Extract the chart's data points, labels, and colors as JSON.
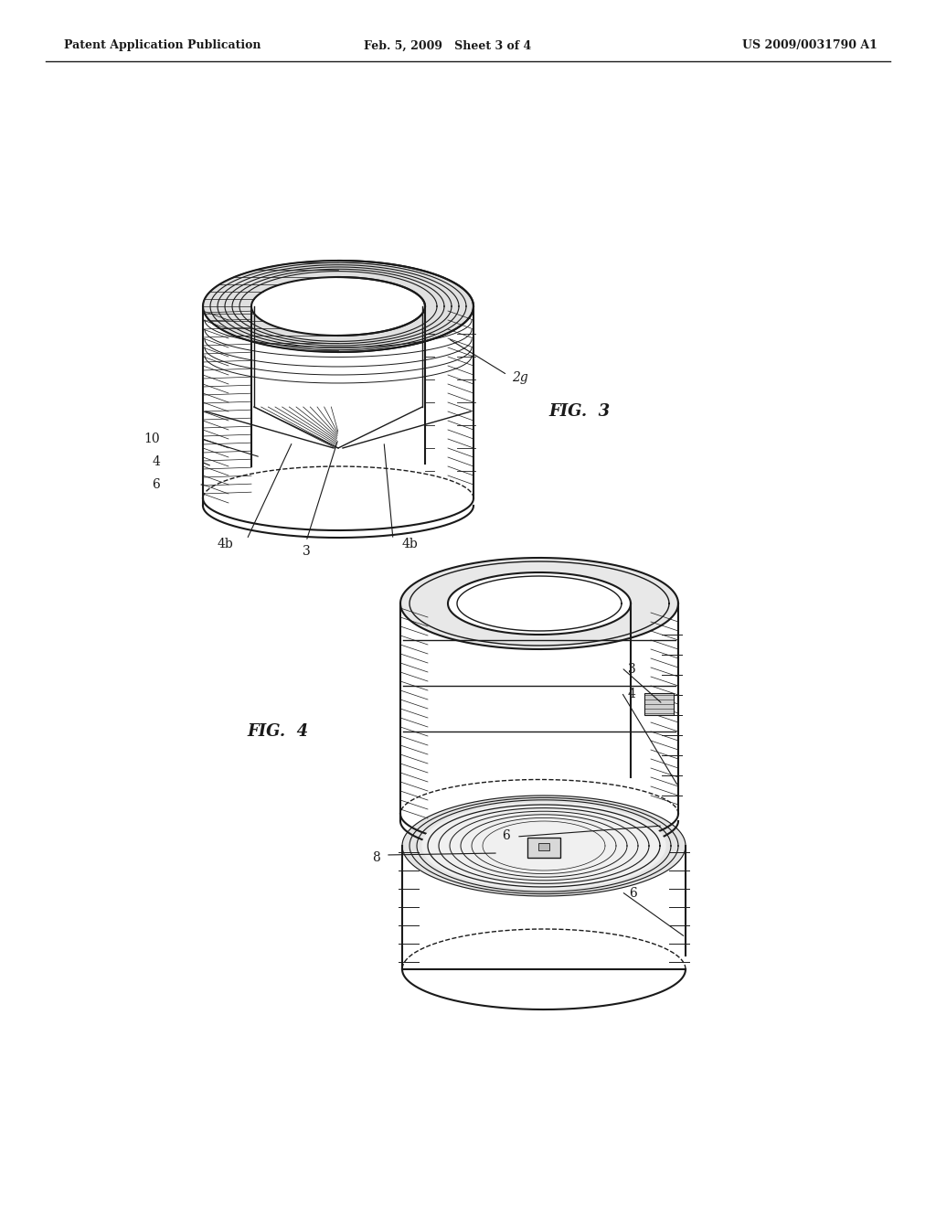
{
  "background_color": "#f5f5f0",
  "page_width": 10.24,
  "page_height": 13.2,
  "header_left": "Patent Application Publication",
  "header_center": "Feb. 5, 2009   Sheet 3 of 4",
  "header_right": "US 2009/0031790 A1",
  "fig3_label": "FIG.  3",
  "fig4_label": "FIG.  4",
  "lc": "#1a1a1a",
  "bg": "#f5f5f0"
}
